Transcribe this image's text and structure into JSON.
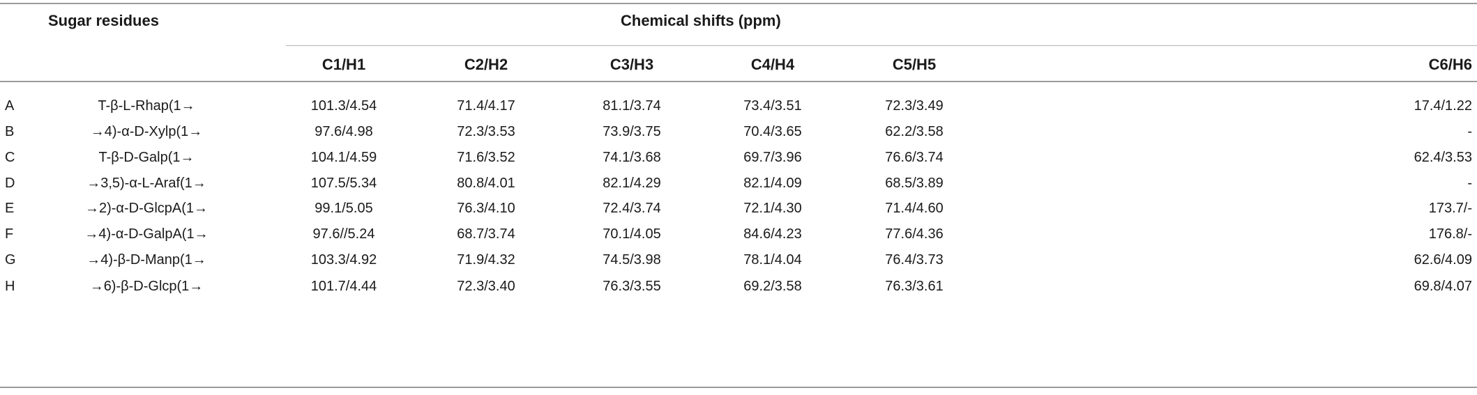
{
  "table": {
    "header": {
      "sugar_residues": "Sugar residues",
      "chemical_shifts": "Chemical shifts (ppm)",
      "columns": [
        "C1/H1",
        "C2/H2",
        "C3/H3",
        "C4/H4",
        "C5/H5",
        "C6/H6"
      ]
    },
    "rows": [
      {
        "id": "A",
        "residue": "T-β-L-Rhap(1→",
        "values": [
          "101.3/4.54",
          "71.4/4.17",
          "81.1/3.74",
          "73.4/3.51",
          "72.3/3.49",
          "17.4/1.22"
        ]
      },
      {
        "id": "B",
        "residue": "→4)-α-D-Xylp(1→",
        "values": [
          "97.6/4.98",
          "72.3/3.53",
          "73.9/3.75",
          "70.4/3.65",
          "62.2/3.58",
          "-"
        ]
      },
      {
        "id": "C",
        "residue": "T-β-D-Galp(1→",
        "values": [
          "104.1/4.59",
          "71.6/3.52",
          "74.1/3.68",
          "69.7/3.96",
          "76.6/3.74",
          "62.4/3.53"
        ]
      },
      {
        "id": "D",
        "residue": "→3,5)-α-L-Araf(1→",
        "values": [
          "107.5/5.34",
          "80.8/4.01",
          "82.1/4.29",
          "82.1/4.09",
          "68.5/3.89",
          "-"
        ]
      },
      {
        "id": "E",
        "residue": "→2)-α-D-GlcpA(1→",
        "values": [
          "99.1/5.05",
          "76.3/4.10",
          "72.4/3.74",
          "72.1/4.30",
          "71.4/4.60",
          "173.7/-"
        ]
      },
      {
        "id": "F",
        "residue": "→4)-α-D-GalpA(1→",
        "values": [
          "97.6//5.24",
          "68.7/3.74",
          "70.1/4.05",
          "84.6/4.23",
          "77.6/4.36",
          "176.8/-"
        ]
      },
      {
        "id": "G",
        "residue": "→4)-β-D-Manp(1→",
        "values": [
          "103.3/4.92",
          "71.9/4.32",
          "74.5/3.98",
          "78.1/4.04",
          "76.4/3.73",
          "62.6/4.09"
        ]
      },
      {
        "id": "H",
        "residue": "→6)-β-D-Glcp(1→",
        "values": [
          "101.7/4.44",
          "72.3/3.40",
          "76.3/3.55",
          "69.2/3.58",
          "76.3/3.61",
          "69.8/4.07"
        ]
      }
    ]
  }
}
